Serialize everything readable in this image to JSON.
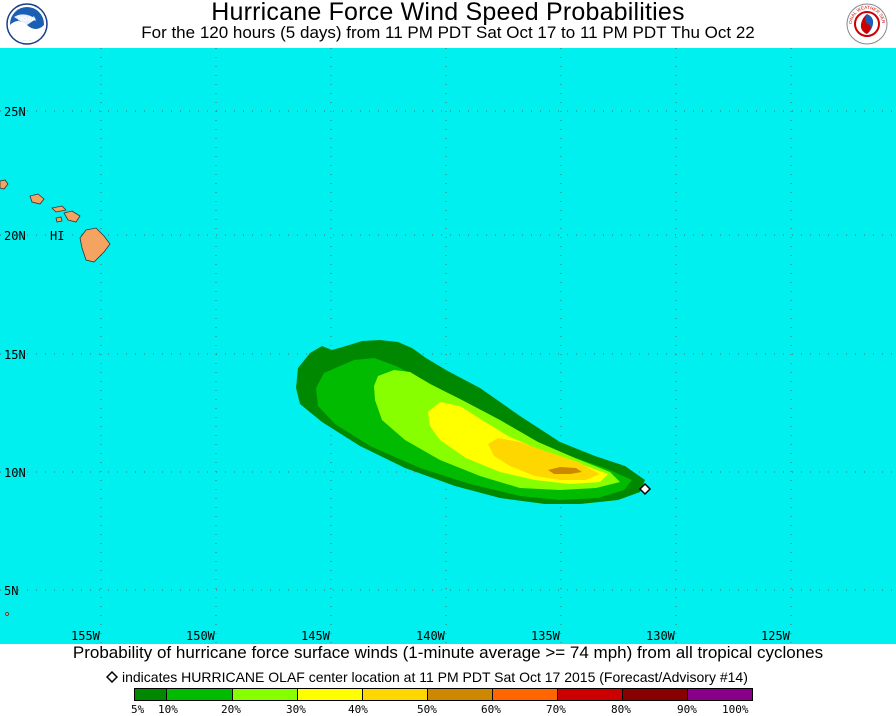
{
  "header": {
    "title": "Hurricane Force Wind Speed Probabilities",
    "subtitle": "For the 120 hours (5 days) from 11 PM PDT Sat Oct 17 to 11 PM PDT Thu Oct 22",
    "left_logo_text": "NOAA",
    "right_logo_text": "NATIONAL WEATHER SERVICE"
  },
  "map": {
    "ocean_color": "#00f0f0",
    "land_color": "#f4a460",
    "land_label": "HI",
    "lat_labels": [
      "25N",
      "20N",
      "15N",
      "10N",
      "5N"
    ],
    "lon_labels": [
      "155W",
      "150W",
      "145W",
      "140W",
      "135W",
      "130W",
      "125W"
    ],
    "storm_marker": "storm-center-diamond"
  },
  "footer": {
    "line1": "Probability of hurricane force surface winds (1-minute average >= 74 mph) from all tropical cyclones",
    "line2": "indicates HURRICANE OLAF center location at 11 PM PDT Sat Oct 17 2015 (Forecast/Advisory #14)"
  },
  "legend": {
    "colors": [
      "#008800",
      "#00bb00",
      "#88ff00",
      "#ffff00",
      "#ffd700",
      "#cc8800",
      "#ff6600",
      "#cc0000",
      "#880000",
      "#880088"
    ],
    "labels": [
      "5%",
      "10%",
      "20%",
      "30%",
      "40%",
      "50%",
      "60%",
      "70%",
      "80%",
      "90%",
      "100%"
    ]
  }
}
